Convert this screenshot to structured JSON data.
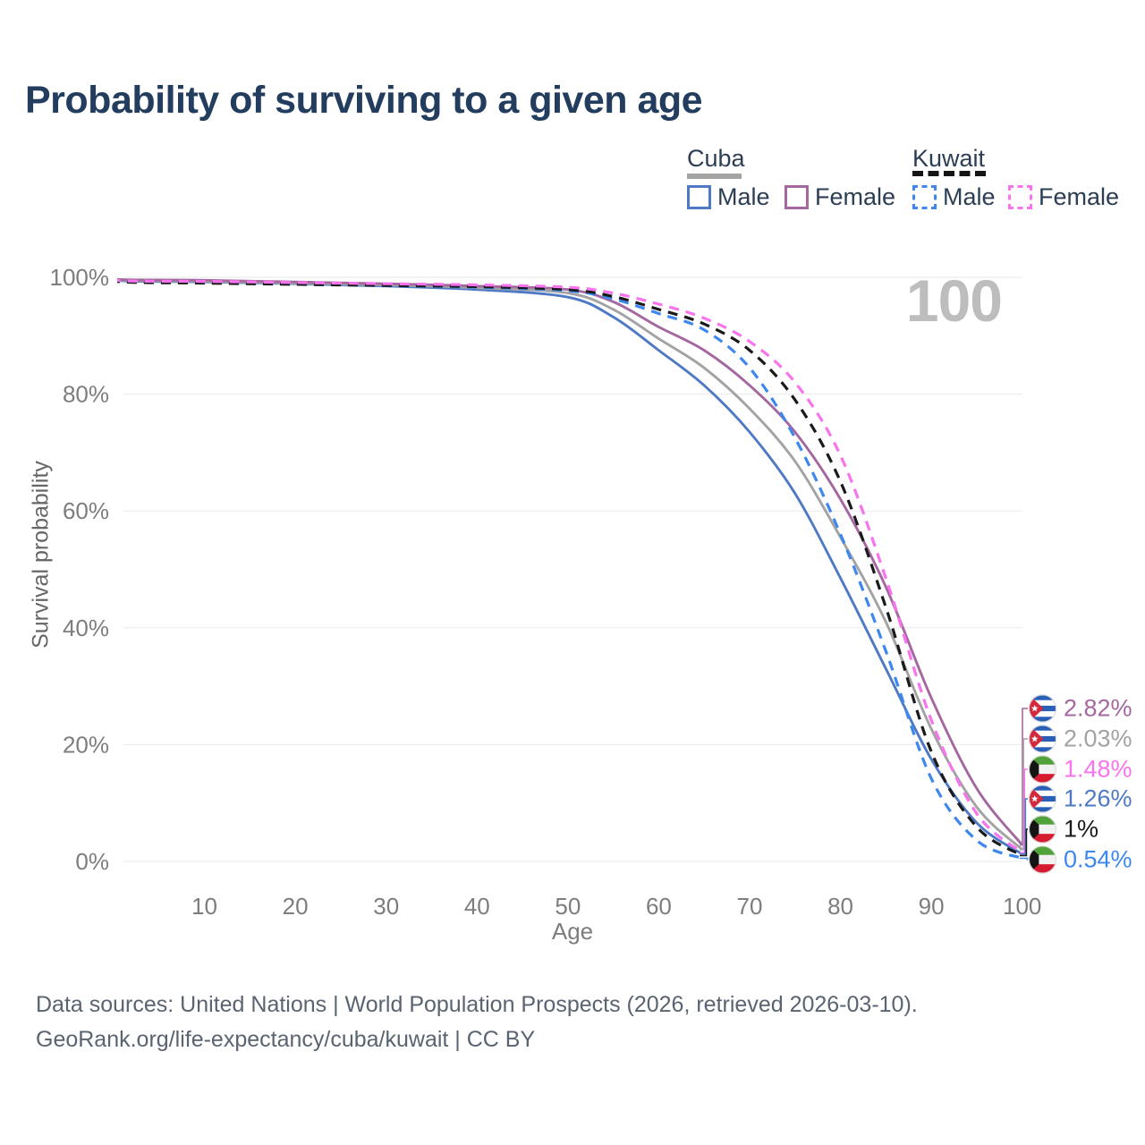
{
  "title": "Probability of surviving to a given age",
  "legend": {
    "groups": [
      {
        "label": "Cuba",
        "line_style": "solid",
        "underline_color": "#a3a3a3",
        "items": [
          {
            "label": "Male",
            "color": "#4e79c4"
          },
          {
            "label": "Female",
            "color": "#a4679f"
          }
        ]
      },
      {
        "label": "Kuwait",
        "line_style": "dashed",
        "underline_color": "#141414",
        "items": [
          {
            "label": "Male",
            "color": "#3d87ee"
          },
          {
            "label": "Female",
            "color": "#f973ef"
          }
        ]
      }
    ]
  },
  "chart_data": {
    "type": "line",
    "xlabel": "Age",
    "ylabel": "Survival probability",
    "xlim": [
      0,
      100
    ],
    "ylim": [
      0,
      100
    ],
    "grid": "horizontal",
    "watermark": "100",
    "x_ticks": [
      10,
      20,
      30,
      40,
      50,
      60,
      70,
      80,
      90,
      100
    ],
    "y_tick_values": [
      0,
      20,
      40,
      60,
      80,
      100
    ],
    "y_tick_labels": [
      "0%",
      "20%",
      "40%",
      "60%",
      "80%",
      "100%"
    ],
    "ages": [
      0,
      1,
      10,
      20,
      30,
      40,
      50,
      55,
      60,
      65,
      70,
      75,
      80,
      85,
      90,
      95,
      100
    ],
    "series": [
      {
        "name": "Cuba Male",
        "country": "Cuba",
        "sex": "Male",
        "style": "solid",
        "color": "#4e79c4",
        "values": [
          100,
          99.4,
          99.2,
          98.9,
          98.5,
          97.9,
          96.6,
          93.2,
          87.5,
          81.5,
          73.5,
          63.0,
          48.5,
          33.0,
          17.5,
          6.6,
          1.26
        ]
      },
      {
        "name": "Cuba",
        "country": "Cuba",
        "sex": "Both",
        "style": "solid",
        "color": "#a3a3a3",
        "values": [
          100,
          99.5,
          99.3,
          99.0,
          98.7,
          98.2,
          97.3,
          94.5,
          89.5,
          84.5,
          77.5,
          68.5,
          55.5,
          41.0,
          22.7,
          9.3,
          2.03
        ]
      },
      {
        "name": "Cuba Female",
        "country": "Cuba",
        "sex": "Female",
        "style": "solid",
        "color": "#a4679f",
        "values": [
          100,
          99.6,
          99.5,
          99.2,
          98.9,
          98.5,
          97.9,
          95.8,
          91.5,
          87.5,
          81.5,
          73.5,
          62.0,
          47.0,
          28.0,
          12.5,
          2.82
        ]
      },
      {
        "name": "Kuwait Male",
        "country": "Kuwait",
        "sex": "Male",
        "style": "dashed",
        "color": "#3d87ee",
        "values": [
          100,
          99.3,
          99.1,
          98.8,
          98.6,
          98.3,
          97.7,
          96.3,
          93.8,
          91.0,
          84.5,
          72.5,
          56.0,
          36.0,
          14.2,
          3.6,
          0.54
        ]
      },
      {
        "name": "Kuwait",
        "country": "Kuwait",
        "sex": "Both",
        "style": "dashed",
        "color": "#1a1a1a",
        "values": [
          100,
          99.2,
          99.0,
          98.8,
          98.6,
          98.4,
          97.9,
          96.7,
          94.5,
          92.0,
          87.5,
          79.0,
          65.0,
          43.5,
          18.8,
          5.9,
          1.0
        ]
      },
      {
        "name": "Kuwait Female",
        "country": "Kuwait",
        "sex": "Female",
        "style": "dashed",
        "color": "#f973ef",
        "values": [
          100,
          99.4,
          99.3,
          99.1,
          98.9,
          98.7,
          98.3,
          97.3,
          95.4,
          93.0,
          89.0,
          82.0,
          69.5,
          48.5,
          24.2,
          8.2,
          1.48
        ]
      }
    ],
    "end_labels": [
      {
        "flag": "cuba",
        "text": "2.82%",
        "series": "Cuba Female"
      },
      {
        "flag": "cuba",
        "text": "2.03%",
        "series": "Cuba"
      },
      {
        "flag": "kuwait",
        "text": "1.48%",
        "series": "Kuwait Female"
      },
      {
        "flag": "cuba",
        "text": "1.26%",
        "series": "Cuba Male"
      },
      {
        "flag": "kuwait",
        "text": "1%",
        "series": "Kuwait"
      },
      {
        "flag": "kuwait",
        "text": "0.54%",
        "series": "Kuwait Male"
      }
    ]
  },
  "footer": {
    "line1": "Data sources: United Nations | World Population Prospects (2026, retrieved 2026-03-10).",
    "line2": "GeoRank.org/life-expectancy/cuba/kuwait | CC BY"
  }
}
